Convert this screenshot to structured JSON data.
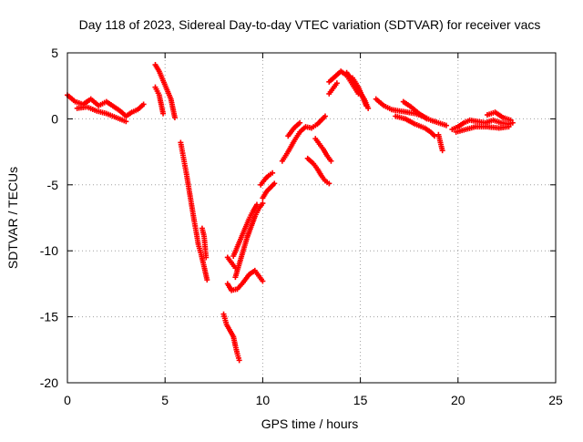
{
  "chart_data": {
    "type": "scatter",
    "title": "Day 118 of 2023, Sidereal Day-to-day VTEC variation (SDTVAR) for receiver vacs",
    "xlabel": "GPS time / hours",
    "ylabel": "SDTVAR / TECUs",
    "xlim": [
      0,
      25
    ],
    "ylim": [
      -20,
      5
    ],
    "xticks": [
      0,
      5,
      10,
      15,
      20,
      25
    ],
    "yticks": [
      5,
      0,
      -5,
      -10,
      -15,
      -20
    ],
    "xtick_labels": [
      "0",
      "5",
      "10",
      "15",
      "20",
      "25"
    ],
    "ytick_labels": [
      "5",
      "0",
      "-5",
      "-10",
      "-15",
      "-20"
    ],
    "grid": true,
    "marker": "+",
    "series": [
      {
        "name": "SDTVAR",
        "color": "#ff0000",
        "segments": [
          [
            [
              0.0,
              1.8
            ],
            [
              0.4,
              1.3
            ],
            [
              0.8,
              1.1
            ],
            [
              1.2,
              1.5
            ],
            [
              1.6,
              1.0
            ],
            [
              2.0,
              1.3
            ],
            [
              2.4,
              0.9
            ],
            [
              2.7,
              0.6
            ],
            [
              3.0,
              0.2
            ],
            [
              3.3,
              0.5
            ],
            [
              3.6,
              0.7
            ],
            [
              3.9,
              1.1
            ]
          ],
          [
            [
              0.5,
              0.8
            ],
            [
              1.0,
              0.9
            ],
            [
              1.5,
              0.6
            ],
            [
              2.0,
              0.4
            ],
            [
              2.5,
              0.1
            ],
            [
              3.0,
              -0.2
            ]
          ],
          [
            [
              4.5,
              4.1
            ],
            [
              4.7,
              3.6
            ],
            [
              4.9,
              2.9
            ],
            [
              5.1,
              2.2
            ],
            [
              5.3,
              1.5
            ],
            [
              5.4,
              0.8
            ],
            [
              5.5,
              0.1
            ]
          ],
          [
            [
              4.5,
              2.4
            ],
            [
              4.7,
              1.8
            ],
            [
              4.8,
              1.1
            ],
            [
              4.9,
              0.4
            ]
          ],
          [
            [
              5.8,
              -1.8
            ],
            [
              5.9,
              -2.6
            ],
            [
              6.0,
              -3.4
            ],
            [
              6.1,
              -4.2
            ],
            [
              6.2,
              -5.1
            ],
            [
              6.3,
              -6.0
            ],
            [
              6.4,
              -6.9
            ],
            [
              6.5,
              -7.8
            ],
            [
              6.6,
              -8.6
            ],
            [
              6.7,
              -9.5
            ],
            [
              6.85,
              -10.3
            ],
            [
              7.0,
              -11.2
            ],
            [
              7.15,
              -12.2
            ]
          ],
          [
            [
              6.9,
              -8.3
            ],
            [
              7.0,
              -8.9
            ],
            [
              7.05,
              -9.7
            ],
            [
              7.1,
              -10.5
            ]
          ],
          [
            [
              8.0,
              -14.8
            ],
            [
              8.15,
              -15.6
            ],
            [
              8.5,
              -16.5
            ],
            [
              8.6,
              -17.2
            ],
            [
              8.7,
              -17.8
            ],
            [
              8.8,
              -18.3
            ]
          ],
          [
            [
              8.2,
              -12.5
            ],
            [
              8.4,
              -13.0
            ],
            [
              8.7,
              -12.9
            ],
            [
              9.0,
              -12.4
            ],
            [
              9.3,
              -11.8
            ],
            [
              9.6,
              -11.5
            ],
            [
              9.8,
              -11.9
            ],
            [
              10.0,
              -12.3
            ]
          ],
          [
            [
              8.2,
              -10.5
            ],
            [
              8.4,
              -10.9
            ],
            [
              8.6,
              -11.3
            ]
          ],
          [
            [
              8.5,
              -10.4
            ],
            [
              8.7,
              -9.7
            ],
            [
              8.9,
              -9.0
            ],
            [
              9.1,
              -8.3
            ],
            [
              9.3,
              -7.6
            ],
            [
              9.5,
              -7.0
            ],
            [
              9.7,
              -6.5
            ]
          ],
          [
            [
              8.6,
              -12.0
            ],
            [
              8.8,
              -11.0
            ],
            [
              9.0,
              -10.0
            ],
            [
              9.2,
              -9.0
            ],
            [
              9.4,
              -8.2
            ],
            [
              9.6,
              -7.4
            ],
            [
              9.8,
              -6.8
            ],
            [
              10.0,
              -6.4
            ]
          ],
          [
            [
              9.9,
              -5.0
            ],
            [
              10.1,
              -4.6
            ],
            [
              10.3,
              -4.3
            ],
            [
              10.5,
              -4.1
            ]
          ],
          [
            [
              10.0,
              -6.0
            ],
            [
              10.2,
              -5.5
            ],
            [
              10.4,
              -5.2
            ],
            [
              10.6,
              -4.9
            ]
          ],
          [
            [
              11.0,
              -3.2
            ],
            [
              11.3,
              -2.5
            ],
            [
              11.6,
              -1.7
            ],
            [
              11.9,
              -1.0
            ],
            [
              12.2,
              -0.6
            ],
            [
              12.5,
              -0.7
            ]
          ],
          [
            [
              11.3,
              -1.3
            ],
            [
              11.6,
              -0.7
            ],
            [
              11.9,
              -0.3
            ]
          ],
          [
            [
              12.3,
              -3.0
            ],
            [
              12.6,
              -3.4
            ],
            [
              12.8,
              -3.8
            ],
            [
              13.0,
              -4.3
            ],
            [
              13.2,
              -4.7
            ],
            [
              13.4,
              -4.9
            ]
          ],
          [
            [
              12.7,
              -1.5
            ],
            [
              12.9,
              -1.9
            ],
            [
              13.1,
              -2.3
            ],
            [
              13.3,
              -2.8
            ],
            [
              13.5,
              -3.2
            ]
          ],
          [
            [
              12.6,
              -0.6
            ],
            [
              12.8,
              -0.4
            ],
            [
              13.0,
              -0.1
            ],
            [
              13.2,
              0.2
            ]
          ],
          [
            [
              13.4,
              2.8
            ],
            [
              13.7,
              3.2
            ],
            [
              14.0,
              3.6
            ],
            [
              14.3,
              3.3
            ],
            [
              14.6,
              2.6
            ],
            [
              14.9,
              1.9
            ]
          ],
          [
            [
              13.4,
              1.9
            ],
            [
              13.6,
              2.3
            ],
            [
              13.8,
              2.7
            ]
          ],
          [
            [
              14.3,
              3.5
            ],
            [
              14.6,
              2.9
            ],
            [
              14.9,
              2.2
            ],
            [
              15.2,
              1.5
            ],
            [
              15.4,
              0.8
            ]
          ],
          [
            [
              14.6,
              3.1
            ],
            [
              14.9,
              2.4
            ],
            [
              15.1,
              1.7
            ],
            [
              15.3,
              1.0
            ]
          ],
          [
            [
              15.8,
              1.5
            ],
            [
              16.2,
              1.0
            ],
            [
              16.6,
              0.7
            ],
            [
              17.0,
              0.6
            ],
            [
              17.4,
              0.5
            ],
            [
              17.8,
              0.4
            ],
            [
              18.2,
              0.2
            ],
            [
              18.6,
              -0.1
            ],
            [
              19.0,
              -0.3
            ],
            [
              19.4,
              -0.5
            ]
          ],
          [
            [
              16.8,
              0.2
            ],
            [
              17.3,
              0.0
            ],
            [
              17.8,
              -0.4
            ],
            [
              18.3,
              -0.7
            ],
            [
              18.6,
              -1.0
            ],
            [
              18.8,
              -1.3
            ]
          ],
          [
            [
              19.0,
              -1.2
            ],
            [
              19.1,
              -1.8
            ],
            [
              19.2,
              -2.4
            ]
          ],
          [
            [
              19.7,
              -0.8
            ],
            [
              20.0,
              -0.6
            ],
            [
              20.3,
              -0.3
            ],
            [
              20.6,
              -0.1
            ],
            [
              21.0,
              -0.2
            ],
            [
              21.4,
              -0.3
            ],
            [
              21.8,
              -0.1
            ],
            [
              22.2,
              -0.3
            ],
            [
              22.6,
              -0.4
            ],
            [
              22.8,
              -0.3
            ]
          ],
          [
            [
              19.9,
              -1.0
            ],
            [
              20.4,
              -0.8
            ],
            [
              20.9,
              -0.6
            ],
            [
              21.5,
              -0.6
            ],
            [
              22.1,
              -0.7
            ],
            [
              22.6,
              -0.6
            ]
          ],
          [
            [
              21.5,
              0.3
            ],
            [
              21.9,
              0.5
            ],
            [
              22.3,
              0.1
            ],
            [
              22.7,
              -0.1
            ]
          ],
          [
            [
              17.2,
              1.3
            ],
            [
              17.6,
              0.9
            ],
            [
              18.0,
              0.4
            ],
            [
              18.4,
              0.0
            ]
          ]
        ]
      }
    ]
  }
}
